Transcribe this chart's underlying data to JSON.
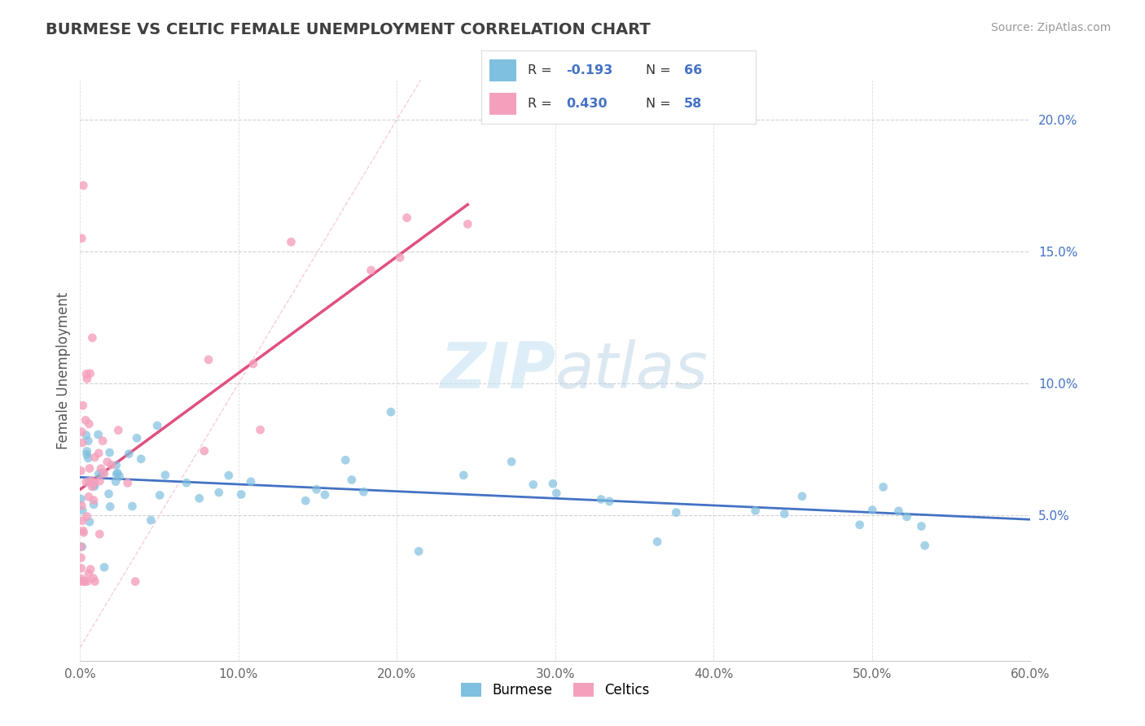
{
  "title": "BURMESE VS CELTIC FEMALE UNEMPLOYMENT CORRELATION CHART",
  "source_text": "Source: ZipAtlas.com",
  "ylabel": "Female Unemployment",
  "xlim": [
    0.0,
    0.6
  ],
  "ylim": [
    -0.005,
    0.215
  ],
  "xticks": [
    0.0,
    0.1,
    0.2,
    0.3,
    0.4,
    0.5,
    0.6
  ],
  "xticklabels": [
    "0.0%",
    "10.0%",
    "20.0%",
    "30.0%",
    "40.0%",
    "50.0%",
    "60.0%"
  ],
  "yticks": [
    0.05,
    0.1,
    0.15,
    0.2
  ],
  "yticklabels": [
    "5.0%",
    "10.0%",
    "15.0%",
    "20.0%"
  ],
  "burmese_color": "#7fbfdf",
  "celtic_color": "#f4a0bc",
  "burmese_R": -0.193,
  "burmese_N": 66,
  "celtic_R": 0.43,
  "celtic_N": 58,
  "legend_label_burmese": "Burmese",
  "legend_label_celtic": "Celtics",
  "watermark_zip": "ZIP",
  "watermark_atlas": "atlas",
  "background_color": "#ffffff",
  "grid_color": "#cccccc",
  "title_color": "#404040",
  "axis_color": "#4472c4",
  "burmese_trend_color": "#4472c4",
  "celtic_trend_color": "#e05080",
  "diag_color": "#f4c0d0"
}
